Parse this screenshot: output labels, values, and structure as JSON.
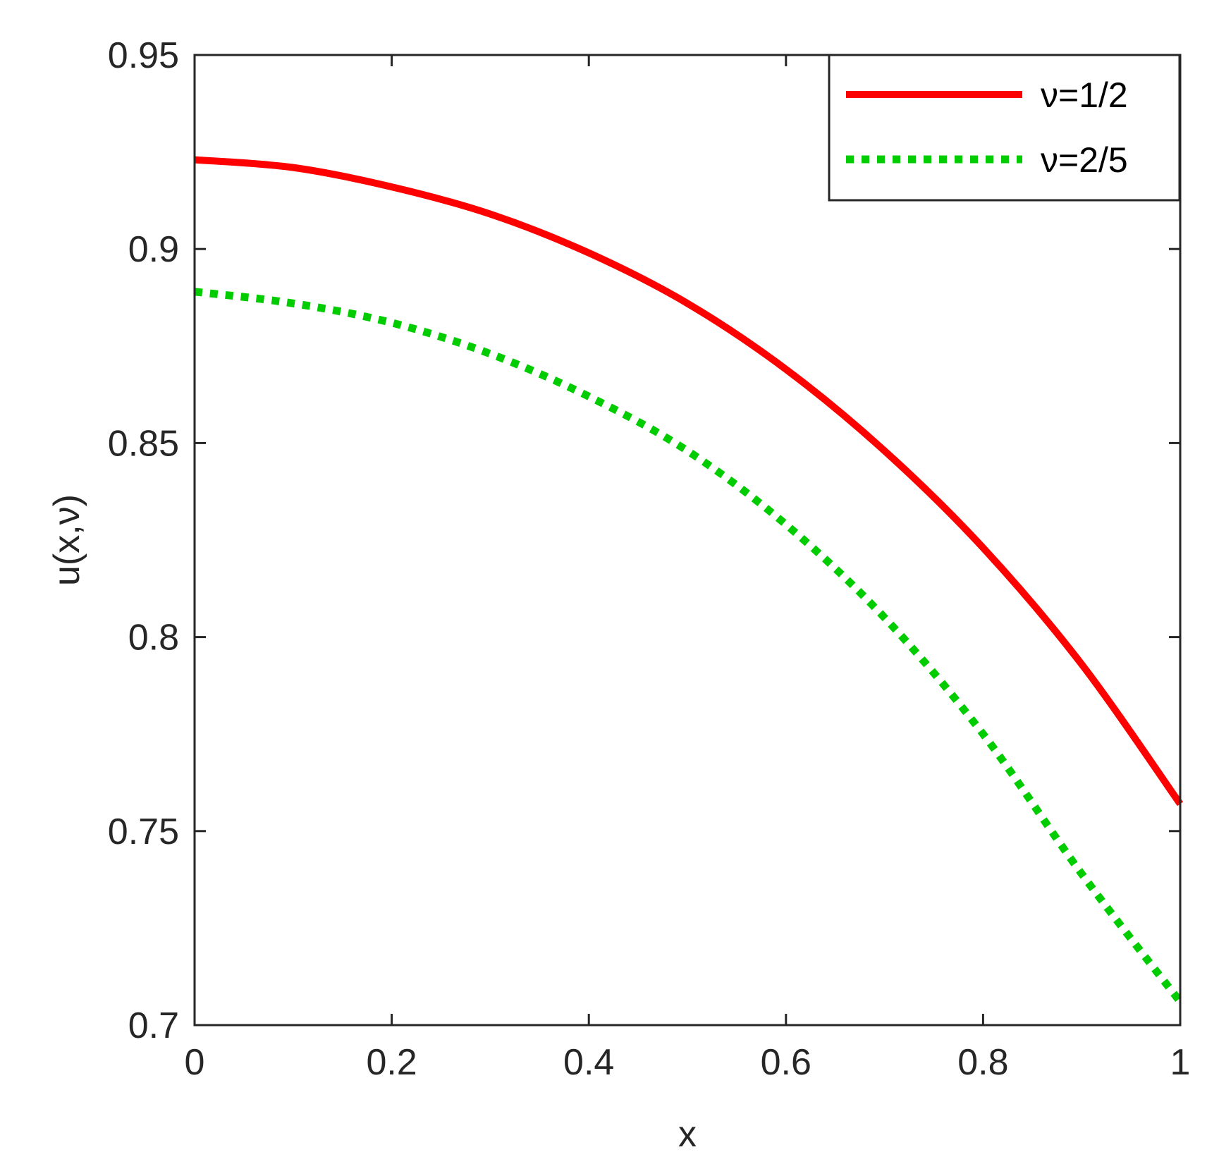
{
  "chart_data": {
    "type": "line",
    "xlabel": "x",
    "ylabel": "u(x,ν)",
    "xlim": [
      0,
      1
    ],
    "ylim": [
      0.7,
      0.95
    ],
    "xticks": [
      "0",
      "0.2",
      "0.4",
      "0.6",
      "0.8",
      "1"
    ],
    "yticks": [
      "0.7",
      "0.75",
      "0.8",
      "0.85",
      "0.9",
      "0.95"
    ],
    "grid": false,
    "legend_position": "top-right",
    "series": [
      {
        "name": "ν=1/2",
        "color": "#ff0000",
        "style": "solid",
        "x": [
          0,
          0.1,
          0.2,
          0.3,
          0.4,
          0.5,
          0.6,
          0.7,
          0.8,
          0.9,
          1.0
        ],
        "y": [
          0.923,
          0.921,
          0.916,
          0.909,
          0.899,
          0.886,
          0.869,
          0.848,
          0.823,
          0.793,
          0.757
        ]
      },
      {
        "name": "ν=2/5",
        "color": "#00cc00",
        "style": "dotted",
        "x": [
          0,
          0.1,
          0.2,
          0.3,
          0.4,
          0.5,
          0.6,
          0.7,
          0.8,
          0.9,
          1.0
        ],
        "y": [
          0.889,
          0.886,
          0.881,
          0.873,
          0.862,
          0.848,
          0.829,
          0.805,
          0.775,
          0.739,
          0.706
        ]
      }
    ]
  }
}
